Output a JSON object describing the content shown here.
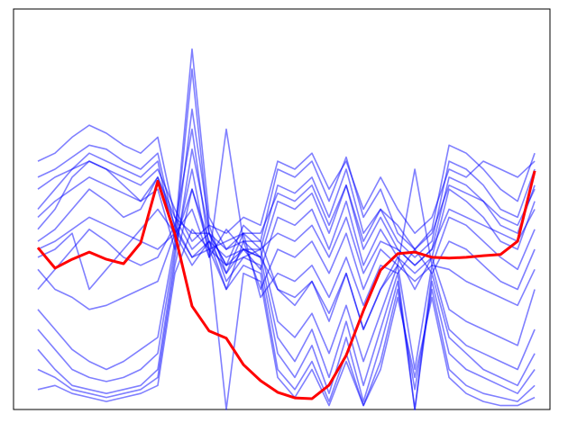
{
  "chart_data": {
    "type": "line",
    "x": [
      0,
      1,
      2,
      3,
      4,
      5,
      6,
      7,
      8,
      9,
      10,
      11,
      12,
      13,
      14,
      15,
      16,
      17,
      18,
      19,
      20,
      21,
      22,
      23,
      24,
      25,
      26,
      27,
      28,
      29
    ],
    "xlim": [
      -1.42,
      29.89
    ],
    "ylim": [
      0,
      100
    ],
    "grid": false,
    "opacity": 0.5,
    "series": [
      {
        "color": "#0000ff",
        "values": [
          62,
          64,
          68,
          71,
          69,
          66,
          64,
          68,
          48,
          40,
          44,
          36,
          46,
          42,
          60,
          58,
          62,
          52,
          63,
          48,
          55,
          44,
          40,
          45,
          66,
          64,
          60,
          55,
          52,
          64
        ]
      },
      {
        "color": "#0000ff",
        "values": [
          58,
          60,
          63,
          66,
          65,
          62,
          60,
          64,
          45,
          38,
          42,
          34,
          44,
          40,
          56,
          54,
          58,
          48,
          60,
          44,
          50,
          42,
          38,
          42,
          62,
          60,
          56,
          50,
          48,
          60
        ]
      },
      {
        "color": "#0000ff",
        "values": [
          50,
          55,
          60,
          64,
          62,
          60,
          58,
          62,
          42,
          55,
          40,
          30,
          42,
          38,
          52,
          50,
          54,
          44,
          56,
          40,
          48,
          40,
          36,
          40,
          58,
          56,
          52,
          46,
          44,
          56
        ]
      },
      {
        "color": "#0000ff",
        "values": [
          45,
          50,
          58,
          62,
          60,
          56,
          52,
          55,
          40,
          60,
          38,
          45,
          40,
          35,
          48,
          46,
          50,
          40,
          52,
          36,
          45,
          38,
          34,
          38,
          55,
          52,
          48,
          42,
          40,
          52
        ]
      },
      {
        "color": "#0000ff",
        "values": [
          40,
          42,
          45,
          48,
          46,
          44,
          42,
          40,
          44,
          50,
          38,
          70,
          42,
          30,
          40,
          38,
          42,
          34,
          44,
          30,
          40,
          36,
          60,
          36,
          48,
          46,
          42,
          38,
          35,
          45
        ]
      },
      {
        "color": "#0000ff",
        "values": [
          30,
          35,
          40,
          45,
          42,
          38,
          36,
          38,
          46,
          70,
          40,
          42,
          44,
          28,
          34,
          32,
          36,
          28,
          38,
          26,
          36,
          34,
          40,
          34,
          42,
          40,
          36,
          32,
          30,
          40
        ]
      },
      {
        "color": "#0000ff",
        "values": [
          35,
          30,
          28,
          25,
          26,
          28,
          30,
          32,
          44,
          90,
          48,
          40,
          42,
          42,
          30,
          28,
          32,
          24,
          34,
          20,
          30,
          38,
          30,
          38,
          25,
          22,
          20,
          18,
          16,
          30
        ]
      },
      {
        "color": "#0000ff",
        "values": [
          25,
          20,
          15,
          12,
          10,
          12,
          15,
          18,
          42,
          85,
          44,
          36,
          40,
          40,
          22,
          18,
          24,
          14,
          26,
          12,
          24,
          36,
          10,
          36,
          20,
          16,
          14,
          12,
          10,
          20
        ]
      },
      {
        "color": "#0000ff",
        "values": [
          20,
          15,
          10,
          8,
          7,
          8,
          10,
          14,
          40,
          75,
          46,
          34,
          40,
          38,
          18,
          12,
          20,
          8,
          22,
          6,
          20,
          34,
          0,
          34,
          18,
          14,
          10,
          8,
          6,
          14
        ]
      },
      {
        "color": "#0000ff",
        "values": [
          15,
          10,
          6,
          5,
          4,
          5,
          6,
          10,
          38,
          65,
          44,
          32,
          38,
          36,
          14,
          8,
          16,
          4,
          18,
          2,
          16,
          32,
          0,
          32,
          14,
          10,
          8,
          6,
          4,
          10
        ]
      },
      {
        "color": "#0000ff",
        "values": [
          10,
          8,
          5,
          4,
          3,
          4,
          5,
          8,
          36,
          55,
          42,
          30,
          36,
          34,
          10,
          5,
          12,
          2,
          14,
          1,
          12,
          30,
          5,
          30,
          10,
          6,
          4,
          3,
          2,
          6
        ]
      },
      {
        "color": "#0000ff",
        "values": [
          5,
          6,
          4,
          3,
          2,
          3,
          4,
          6,
          34,
          45,
          40,
          0,
          34,
          32,
          8,
          3,
          10,
          1,
          12,
          1,
          10,
          28,
          8,
          28,
          8,
          4,
          2,
          1,
          1,
          3
        ]
      },
      {
        "color": "#0000ff",
        "values": [
          42,
          45,
          50,
          55,
          52,
          48,
          50,
          58,
          46,
          38,
          40,
          36,
          38,
          40,
          44,
          42,
          46,
          38,
          48,
          34,
          42,
          40,
          36,
          40,
          50,
          48,
          46,
          44,
          42,
          50
        ]
      },
      {
        "color": "#0000ff",
        "values": [
          38,
          40,
          44,
          30,
          35,
          40,
          45,
          50,
          44,
          36,
          42,
          38,
          40,
          38,
          30,
          26,
          32,
          22,
          34,
          20,
          30,
          36,
          32,
          36,
          35,
          32,
          30,
          28,
          26,
          35
        ]
      },
      {
        "color": "#0000ff",
        "values": [
          55,
          58,
          60,
          62,
          60,
          58,
          56,
          60,
          50,
          42,
          46,
          44,
          48,
          46,
          62,
          60,
          64,
          55,
          62,
          50,
          58,
          50,
          44,
          48,
          60,
          58,
          62,
          60,
          58,
          62
        ]
      },
      {
        "color": "#0000ff",
        "values": [
          48,
          52,
          55,
          58,
          56,
          54,
          52,
          58,
          48,
          44,
          44,
          40,
          44,
          44,
          54,
          52,
          56,
          46,
          56,
          42,
          50,
          46,
          40,
          44,
          56,
          54,
          52,
          48,
          46,
          55
        ]
      },
      {
        "color": "#ff0000",
        "highlight": true,
        "values": [
          40.4,
          35.3,
          37.5,
          39.3,
          37.5,
          36.4,
          41.6,
          57,
          43.8,
          25.8,
          19.6,
          17.8,
          11.2,
          7.2,
          4.3,
          2.9,
          2.7,
          6.1,
          13.5,
          24.7,
          34.8,
          38.9,
          39.3,
          38,
          37.8,
          38,
          38.4,
          38.7,
          42,
          59.6
        ]
      }
    ]
  }
}
